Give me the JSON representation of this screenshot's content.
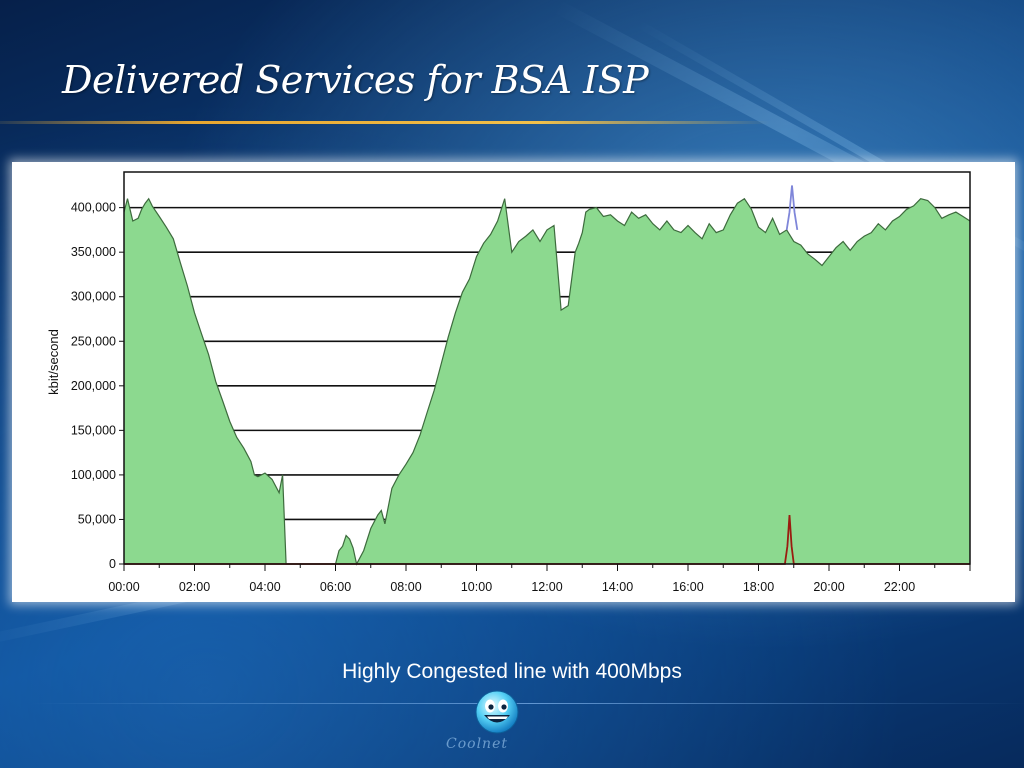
{
  "slide": {
    "title": "Delivered Services for BSA ISP",
    "caption": "Highly Congested line with 400Mbps",
    "logo_text": "Coolnet"
  },
  "colors": {
    "area_fill": "#8cd98f",
    "area_line": "#3d6b3d",
    "spike_blue": "#7f86d9",
    "spike_red": "#9a1c10",
    "accent_rule": "#e7a630"
  },
  "chart_data": {
    "type": "area",
    "ylabel": "kbit/second",
    "xlabel": "",
    "ylim": [
      0,
      440000
    ],
    "y_ticks": [
      0,
      50000,
      100000,
      150000,
      200000,
      250000,
      300000,
      350000,
      400000
    ],
    "y_tick_labels": [
      "0",
      "50,000",
      "100,000",
      "150,000",
      "200,000",
      "250,000",
      "300,000",
      "350,000",
      "400,000"
    ],
    "x_ticks": [
      0,
      2,
      4,
      6,
      8,
      10,
      12,
      14,
      16,
      18,
      20,
      22
    ],
    "x_tick_labels": [
      "00:00",
      "02:00",
      "04:00",
      "06:00",
      "08:00",
      "10:00",
      "12:00",
      "14:00",
      "16:00",
      "18:00",
      "20:00",
      "22:00"
    ],
    "xlim": [
      0,
      24
    ],
    "grid": "horizontal",
    "series": [
      {
        "type": "area",
        "x": [
          0,
          0.1,
          0.25,
          0.4,
          0.5,
          0.6,
          0.7,
          0.8,
          1.0,
          1.2,
          1.4,
          1.6,
          1.8,
          2.0,
          2.2,
          2.4,
          2.6,
          2.8,
          3.0,
          3.2,
          3.4,
          3.6,
          3.7,
          3.8,
          4.0,
          4.2,
          4.4,
          4.5,
          4.6,
          4.75,
          4.8,
          5.0,
          5.5,
          6.0,
          6.1,
          6.2,
          6.3,
          6.4,
          6.5,
          6.6,
          6.8,
          7.0,
          7.2,
          7.3,
          7.4,
          7.6,
          7.8,
          8.0,
          8.2,
          8.4,
          8.6,
          8.8,
          9.0,
          9.2,
          9.4,
          9.6,
          9.8,
          10.0,
          10.2,
          10.4,
          10.6,
          10.8,
          11.0,
          11.2,
          11.4,
          11.6,
          11.8,
          12.0,
          12.2,
          12.4,
          12.6,
          12.8,
          12.9,
          13.0,
          13.1,
          13.2,
          13.4,
          13.6,
          13.8,
          14.0,
          14.2,
          14.4,
          14.6,
          14.8,
          15.0,
          15.2,
          15.4,
          15.6,
          15.8,
          16.0,
          16.2,
          16.4,
          16.6,
          16.8,
          17.0,
          17.2,
          17.4,
          17.6,
          17.8,
          18.0,
          18.2,
          18.4,
          18.6,
          18.8,
          19.0,
          19.2,
          19.4,
          19.6,
          19.8,
          20.0,
          20.2,
          20.4,
          20.6,
          20.8,
          21.0,
          21.2,
          21.4,
          21.6,
          21.8,
          22.0,
          22.2,
          22.4,
          22.6,
          22.8,
          23.0,
          23.2,
          23.4,
          23.6,
          23.8,
          24.0
        ],
        "y": [
          395000,
          410000,
          385000,
          388000,
          398000,
          405000,
          410000,
          402000,
          390000,
          378000,
          365000,
          338000,
          312000,
          282000,
          258000,
          235000,
          205000,
          183000,
          160000,
          142000,
          130000,
          115000,
          100000,
          98000,
          102000,
          95000,
          80000,
          100000,
          0,
          0,
          0,
          0,
          0,
          0,
          15000,
          20000,
          32000,
          28000,
          18000,
          0,
          15000,
          40000,
          55000,
          60000,
          45000,
          85000,
          100000,
          112000,
          125000,
          145000,
          170000,
          195000,
          225000,
          255000,
          282000,
          305000,
          320000,
          345000,
          360000,
          370000,
          385000,
          410000,
          350000,
          362000,
          368000,
          375000,
          362000,
          375000,
          380000,
          285000,
          290000,
          350000,
          360000,
          372000,
          395000,
          398000,
          400000,
          390000,
          392000,
          385000,
          380000,
          395000,
          388000,
          392000,
          382000,
          375000,
          385000,
          375000,
          372000,
          380000,
          372000,
          365000,
          382000,
          372000,
          375000,
          392000,
          405000,
          410000,
          398000,
          378000,
          372000,
          388000,
          370000,
          375000,
          362000,
          358000,
          348000,
          342000,
          335000,
          345000,
          355000,
          362000,
          352000,
          362000,
          368000,
          372000,
          382000,
          375000,
          385000,
          390000,
          398000,
          402000,
          410000,
          408000,
          400000,
          388000,
          392000,
          395000,
          390000,
          385000
        ]
      },
      {
        "type": "line",
        "color": "#7f86d9",
        "x": [
          18.8,
          18.88,
          18.95,
          19.02,
          19.1
        ],
        "y": [
          375000,
          395000,
          425000,
          395000,
          375000
        ]
      },
      {
        "type": "line",
        "color": "#9a1c10",
        "x": [
          0,
          18.75,
          18.82,
          18.88,
          18.94,
          19.0,
          24.0
        ],
        "y": [
          0,
          0,
          20000,
          55000,
          20000,
          0,
          0
        ]
      }
    ]
  }
}
